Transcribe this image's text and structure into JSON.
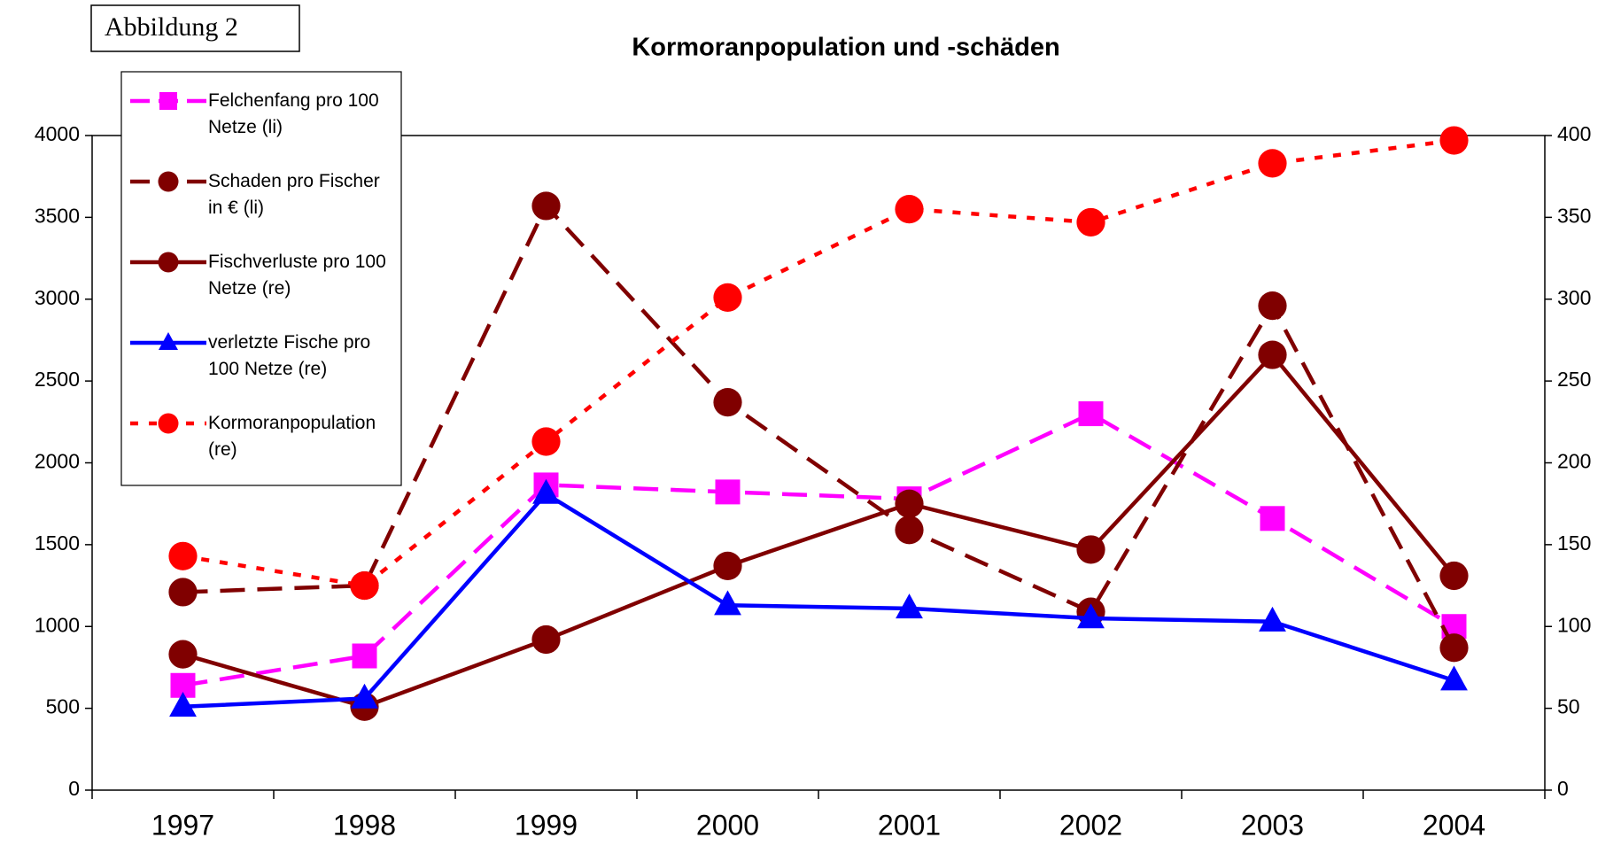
{
  "chart_data": {
    "type": "line",
    "title": "Kormoranpopulation und -schäden",
    "label": "Abbildung 2",
    "categories": [
      "1997",
      "1998",
      "1999",
      "2000",
      "2001",
      "2002",
      "2003",
      "2004"
    ],
    "ylim": [
      0,
      4000
    ],
    "yticks": [
      0,
      500,
      1000,
      1500,
      2000,
      2500,
      3000,
      3500,
      4000
    ],
    "y2lim": [
      0,
      400
    ],
    "y2ticks": [
      0,
      50,
      100,
      150,
      200,
      250,
      300,
      350,
      400
    ],
    "grid": false,
    "legend": "upper left",
    "series": [
      {
        "name": "Felchenfang pro 100 Netze (li)",
        "color": "#ff00ff",
        "line_style": "dashed",
        "marker": "square",
        "values": [
          640,
          820,
          1865,
          1822,
          1780,
          2300,
          1660,
          1000
        ]
      },
      {
        "name": "Schaden pro Fischer in € (li)",
        "color": "#800000",
        "line_style": "dashed",
        "marker": "circle",
        "values": [
          1210,
          1250,
          3570,
          2370,
          1590,
          1090,
          2960,
          870
        ]
      },
      {
        "name": "Fischverluste pro 100 Netze (re)",
        "color": "#800000",
        "line_style": "solid",
        "marker": "circle",
        "axis": "y2",
        "values": [
          83,
          51,
          92,
          137,
          175,
          147,
          266,
          131
        ]
      },
      {
        "name": "verletzte Fische pro 100 Netze (re)",
        "color": "#0000ff",
        "line_style": "solid",
        "marker": "triangle",
        "axis": "y2",
        "values": [
          51,
          56,
          181,
          113,
          111,
          105,
          103,
          67
        ]
      },
      {
        "name": "Kormoranpopulation (re)",
        "color": "#ff0000",
        "line_style": "dotted",
        "marker": "circle",
        "axis": "y2",
        "values": [
          143,
          125,
          213,
          301,
          355,
          347,
          383,
          397
        ]
      }
    ]
  }
}
